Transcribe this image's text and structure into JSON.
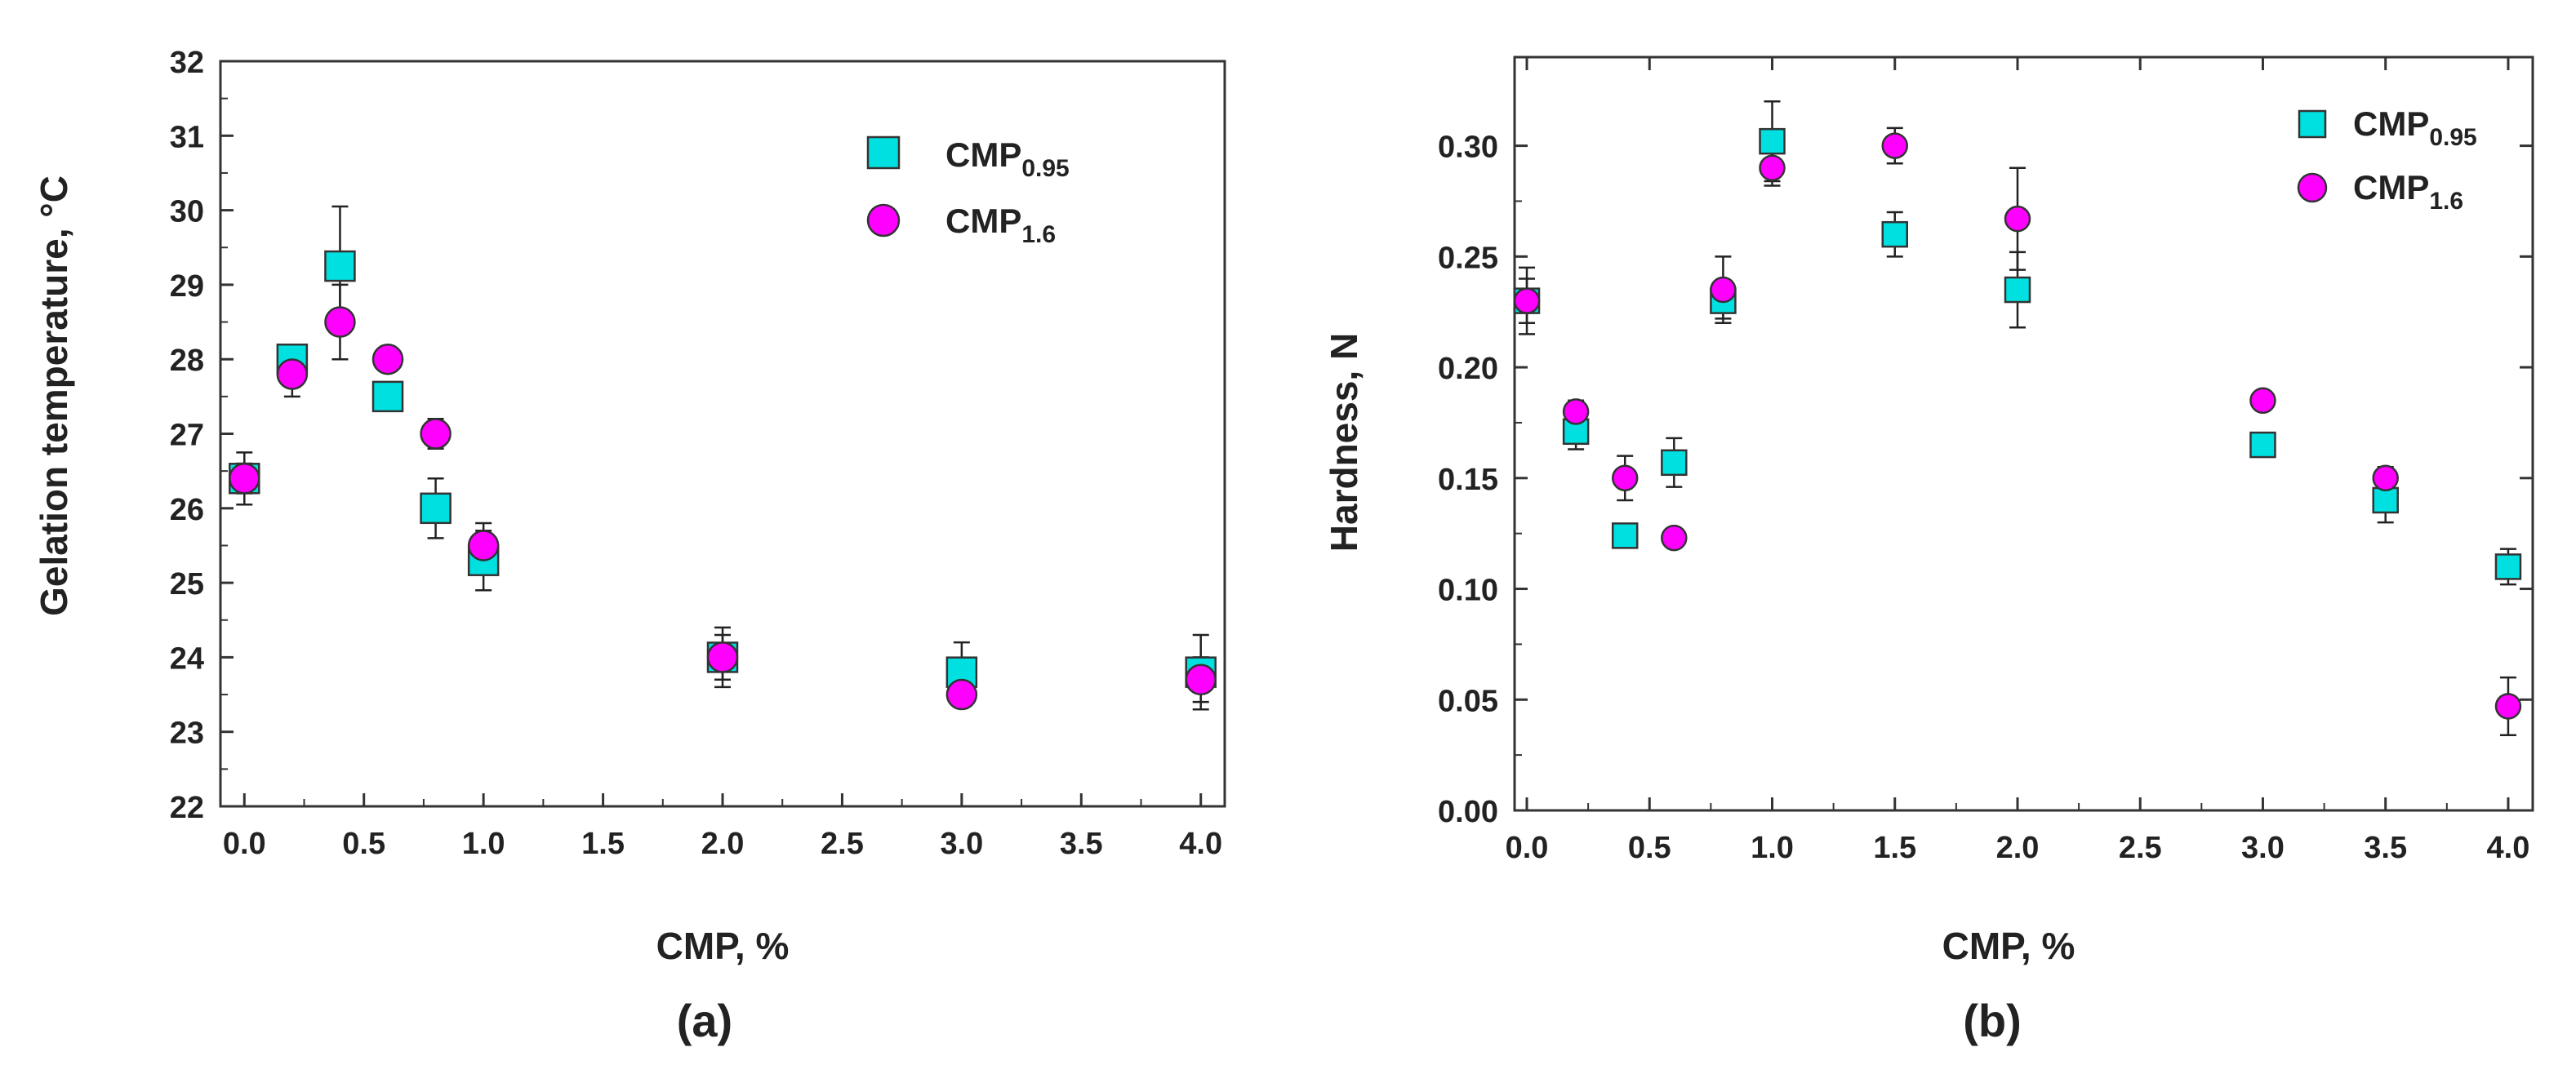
{
  "chart_data": [
    {
      "type": "scatter",
      "panel_label": "(a)",
      "xlabel": "CMP, %",
      "ylabel": "Gelation temperature, °C",
      "xlim": [
        -0.1,
        4.1
      ],
      "ylim": [
        22,
        32
      ],
      "xticks": [
        "0.0",
        "0.5",
        "1.0",
        "1.5",
        "2.0",
        "2.5",
        "3.0",
        "3.5",
        "4.0"
      ],
      "yticks": [
        "22",
        "23",
        "24",
        "25",
        "26",
        "27",
        "28",
        "29",
        "30",
        "31",
        "32"
      ],
      "legend_position": "top-right",
      "series": [
        {
          "name": "CMP",
          "sub": "0.95",
          "marker": "square",
          "color": "#00e0e0",
          "x": [
            0.0,
            0.2,
            0.4,
            0.6,
            0.8,
            1.0,
            2.0,
            3.0,
            4.0
          ],
          "y": [
            26.4,
            28.0,
            29.25,
            27.5,
            26.0,
            25.3,
            24.0,
            23.8,
            23.8
          ],
          "err": [
            0.35,
            0.1,
            0.8,
            0.1,
            0.4,
            0.4,
            0.4,
            0.4,
            0.5
          ]
        },
        {
          "name": "CMP",
          "sub": "1.6",
          "marker": "circle",
          "color": "#ff00ff",
          "x": [
            0.0,
            0.2,
            0.4,
            0.6,
            0.8,
            1.0,
            2.0,
            3.0,
            4.0
          ],
          "y": [
            26.4,
            27.8,
            28.5,
            28.0,
            27.0,
            25.5,
            24.0,
            23.5,
            23.7
          ],
          "err": [
            0.2,
            0.3,
            0.5,
            0.15,
            0.2,
            0.3,
            0.3,
            0.1,
            0.3
          ]
        }
      ]
    },
    {
      "type": "scatter",
      "panel_label": "(b)",
      "xlabel": "CMP, %",
      "ylabel": "Hardness, N",
      "xlim": [
        -0.05,
        4.1
      ],
      "ylim": [
        0,
        0.34
      ],
      "xticks": [
        "0.0",
        "0.5",
        "1.0",
        "1.5",
        "2.0",
        "2.5",
        "3.0",
        "3.5",
        "4.0"
      ],
      "yticks": [
        "0.00",
        "0.05",
        "0.10",
        "0.15",
        "0.20",
        "0.25",
        "0.30"
      ],
      "legend_position": "top-right",
      "series": [
        {
          "name": "CMP",
          "sub": "0.95",
          "marker": "square",
          "color": "#00e0e0",
          "x": [
            0.0,
            0.2,
            0.4,
            0.6,
            0.8,
            1.0,
            1.5,
            2.0,
            3.0,
            3.5,
            4.0
          ],
          "y": [
            0.23,
            0.171,
            0.124,
            0.157,
            0.23,
            0.302,
            0.26,
            0.235,
            0.165,
            0.14,
            0.11
          ],
          "err": [
            0.015,
            0.008,
            0.003,
            0.011,
            0.008,
            0.018,
            0.01,
            0.017,
            0.005,
            0.01,
            0.008
          ]
        },
        {
          "name": "CMP",
          "sub": "1.6",
          "marker": "circle",
          "color": "#ff00ff",
          "x": [
            0.0,
            0.2,
            0.4,
            0.6,
            0.8,
            1.0,
            1.5,
            2.0,
            3.0,
            3.5,
            4.0
          ],
          "y": [
            0.23,
            0.18,
            0.15,
            0.123,
            0.235,
            0.29,
            0.3,
            0.267,
            0.185,
            0.15,
            0.047
          ],
          "err": [
            0.01,
            0.005,
            0.01,
            0.004,
            0.015,
            0.008,
            0.008,
            0.023,
            0.003,
            0.005,
            0.013
          ]
        }
      ]
    }
  ]
}
